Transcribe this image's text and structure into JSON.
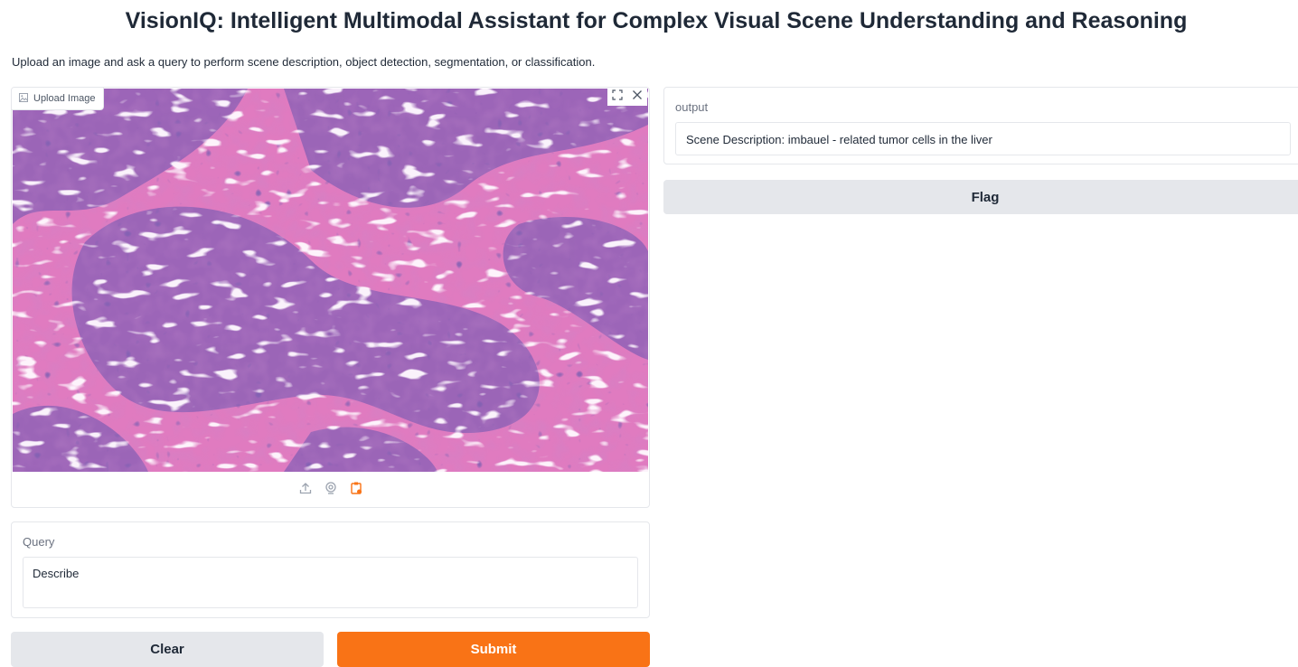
{
  "header": {
    "title": "VisionIQ: Intelligent Multimodal Assistant for Complex Visual Scene Understanding and Reasoning",
    "description": "Upload an image and ask a query to perform scene description, object detection, segmentation, or classification."
  },
  "image_input": {
    "label": "Upload Image",
    "icon": "image-icon",
    "content": "H&E stained histology tissue",
    "sources": [
      "upload-icon",
      "webcam-icon",
      "clipboard-icon"
    ]
  },
  "query": {
    "label": "Query",
    "value": "Describe"
  },
  "buttons": {
    "clear": "Clear",
    "submit": "Submit",
    "flag": "Flag"
  },
  "output": {
    "label": "output",
    "value": "Scene Description: imbauel - related tumor cells in the liver"
  },
  "colors": {
    "accent": "#f97316",
    "secondary_button": "#e5e7eb",
    "border": "#e5e7eb"
  }
}
